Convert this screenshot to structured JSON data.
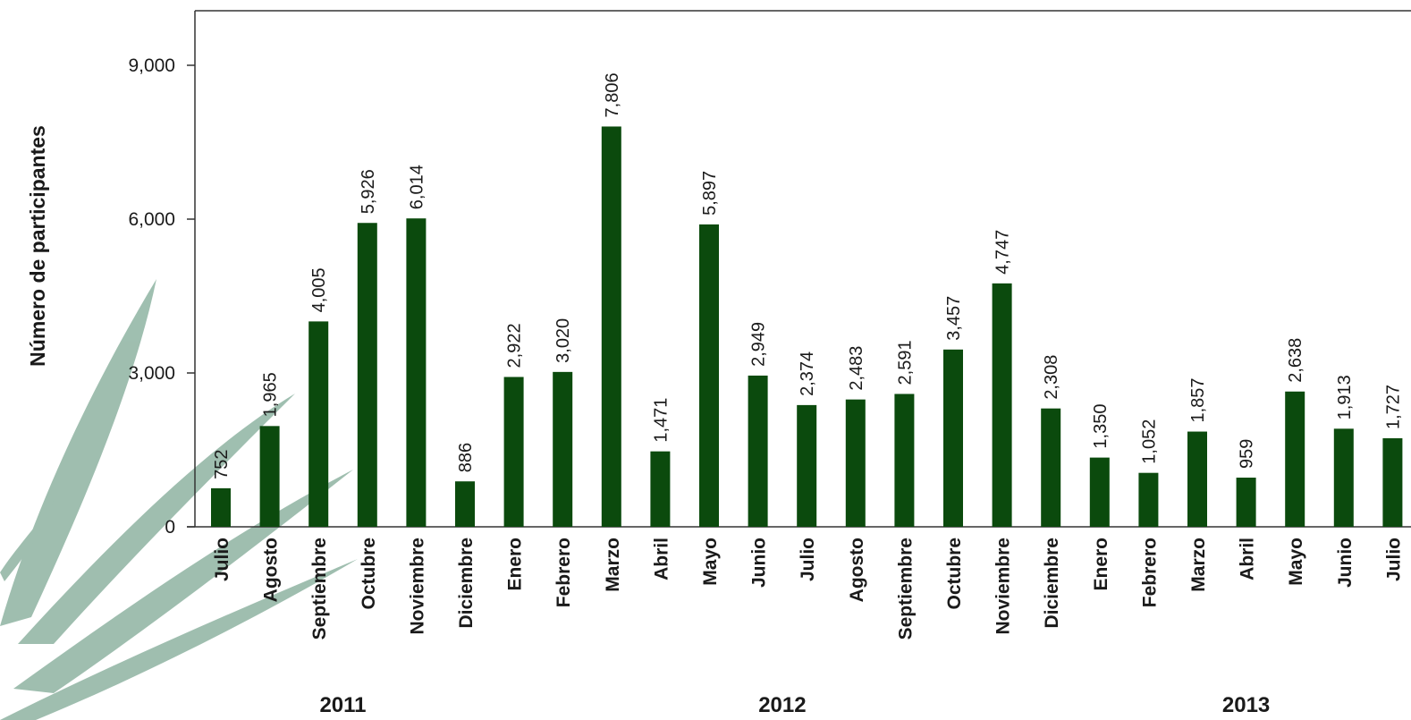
{
  "chart_data": {
    "type": "bar",
    "title": "",
    "xlabel": "",
    "ylabel": "Número de participantes",
    "ylim": [
      0,
      10000
    ],
    "yticks": [
      0,
      3000,
      6000,
      9000
    ],
    "ytick_labels": [
      "0",
      "3,000",
      "6,000",
      "9,000"
    ],
    "bar_color": "#0b4a0d",
    "categories": [
      "Julio",
      "Agosto",
      "Septiembre",
      "Octubre",
      "Noviembre",
      "Diciembre",
      "Enero",
      "Febrero",
      "Marzo",
      "Abril",
      "Mayo",
      "Junio",
      "Julio",
      "Agosto",
      "Septiembre",
      "Octubre",
      "Noviembre",
      "Diciembre",
      "Enero",
      "Febrero",
      "Marzo",
      "Abril",
      "Mayo",
      "Junio",
      "Julio"
    ],
    "values": [
      752,
      1965,
      4005,
      5926,
      6014,
      886,
      2922,
      3020,
      7806,
      1471,
      5897,
      2949,
      2374,
      2483,
      2591,
      3457,
      4747,
      2308,
      1350,
      1052,
      1857,
      959,
      2638,
      1913,
      1727
    ],
    "value_labels": [
      "752",
      "1,965",
      "4,005",
      "5,926",
      "6,014",
      "886",
      "2,922",
      "3,020",
      "7,806",
      "1,471",
      "5,897",
      "2,949",
      "2,374",
      "2,483",
      "2,591",
      "3,457",
      "4,747",
      "2,308",
      "1,350",
      "1,052",
      "1,857",
      "959",
      "2,638",
      "1,913",
      "1,727"
    ],
    "year_groups": [
      {
        "label": "2011",
        "first_index": 0,
        "last_index": 5
      },
      {
        "label": "2012",
        "first_index": 6,
        "last_index": 17
      },
      {
        "label": "2013",
        "first_index": 18,
        "last_index": 24
      }
    ],
    "grid": false,
    "legend": "none"
  }
}
